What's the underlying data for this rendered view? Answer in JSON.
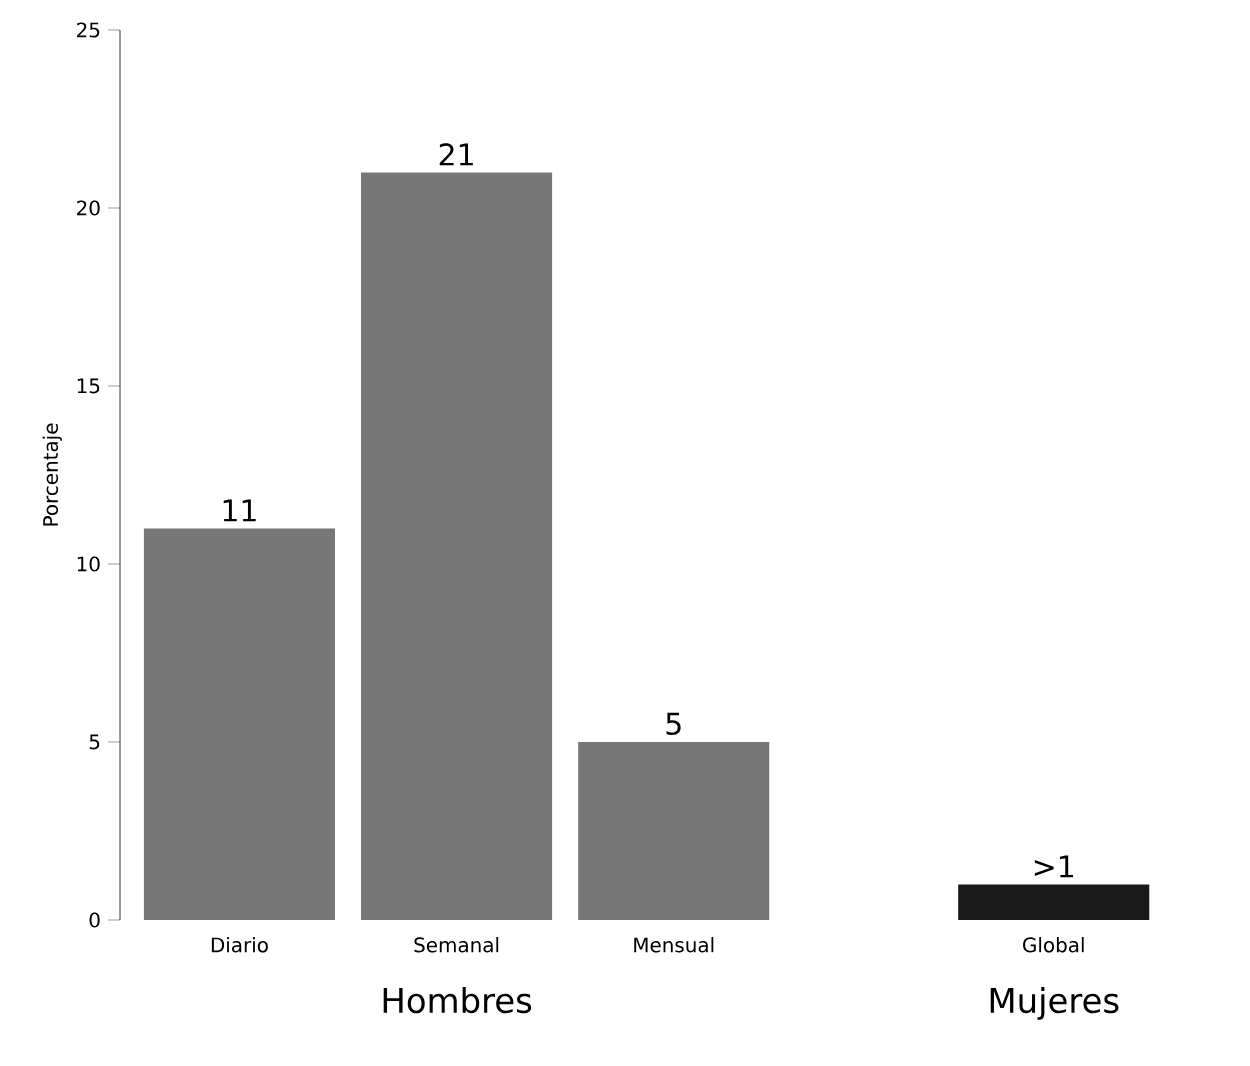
{
  "chart_data": {
    "type": "bar",
    "ylabel": "Porcentaje",
    "categories": [
      "Diario",
      "Semanal",
      "Mensual",
      "Global"
    ],
    "values": [
      11,
      21,
      5,
      1
    ],
    "colors": [
      "#777777",
      "#777777",
      "#777777",
      "#1a1a1a"
    ],
    "value_labels": [
      "11",
      "21",
      "5",
      ">1"
    ],
    "ylim": [
      0,
      25
    ],
    "yticks": [
      0,
      5,
      10,
      15,
      20,
      25
    ],
    "annotations": [
      "Hombres",
      "Mujeres"
    ]
  }
}
